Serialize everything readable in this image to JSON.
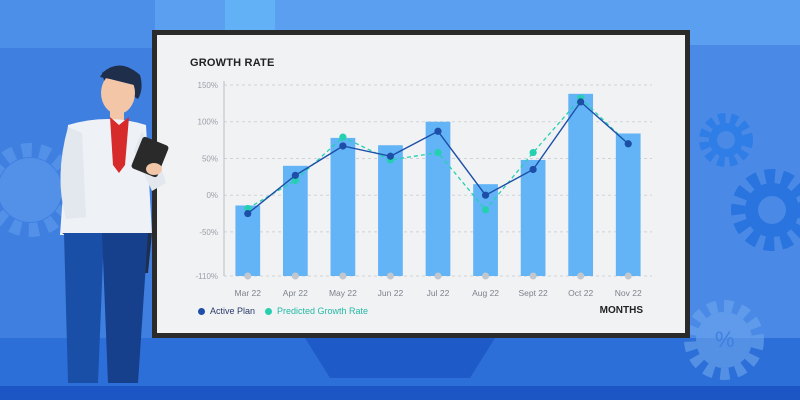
{
  "chart_data": {
    "type": "bar",
    "title": "GROWTH RATE",
    "xlabel": "MONTHS",
    "ylabel": "",
    "categories": [
      "Mar 22",
      "Apr 22",
      "May 22",
      "Jun 22",
      "Jul 22",
      "Aug 22",
      "Sept 22",
      "Oct 22",
      "Nov 22"
    ],
    "bars": [
      -14,
      40,
      78,
      68,
      100,
      15,
      48,
      138,
      84
    ],
    "ylim": [
      -110,
      150
    ],
    "yticks": [
      150,
      100,
      50,
      0,
      -50,
      -110
    ],
    "ytick_labels": [
      "150%",
      "100%",
      "50%",
      "0%",
      "-50%",
      "-110%"
    ],
    "series": [
      {
        "name": "Active Plan",
        "values": [
          -25,
          27,
          67,
          53,
          87,
          0,
          35,
          127,
          70
        ]
      },
      {
        "name": "Predicted Growth Rate",
        "values": [
          -18,
          20,
          79,
          48,
          58,
          -20,
          58,
          132,
          70
        ]
      }
    ],
    "grid": true,
    "legend": "bottom-left"
  },
  "colors": {
    "bar": "#62b4f6",
    "active_plan": "#1d4fa8",
    "predicted": "#25d0b0",
    "grid": "#cfd3d9",
    "axis_text": "#9aa0a8"
  }
}
